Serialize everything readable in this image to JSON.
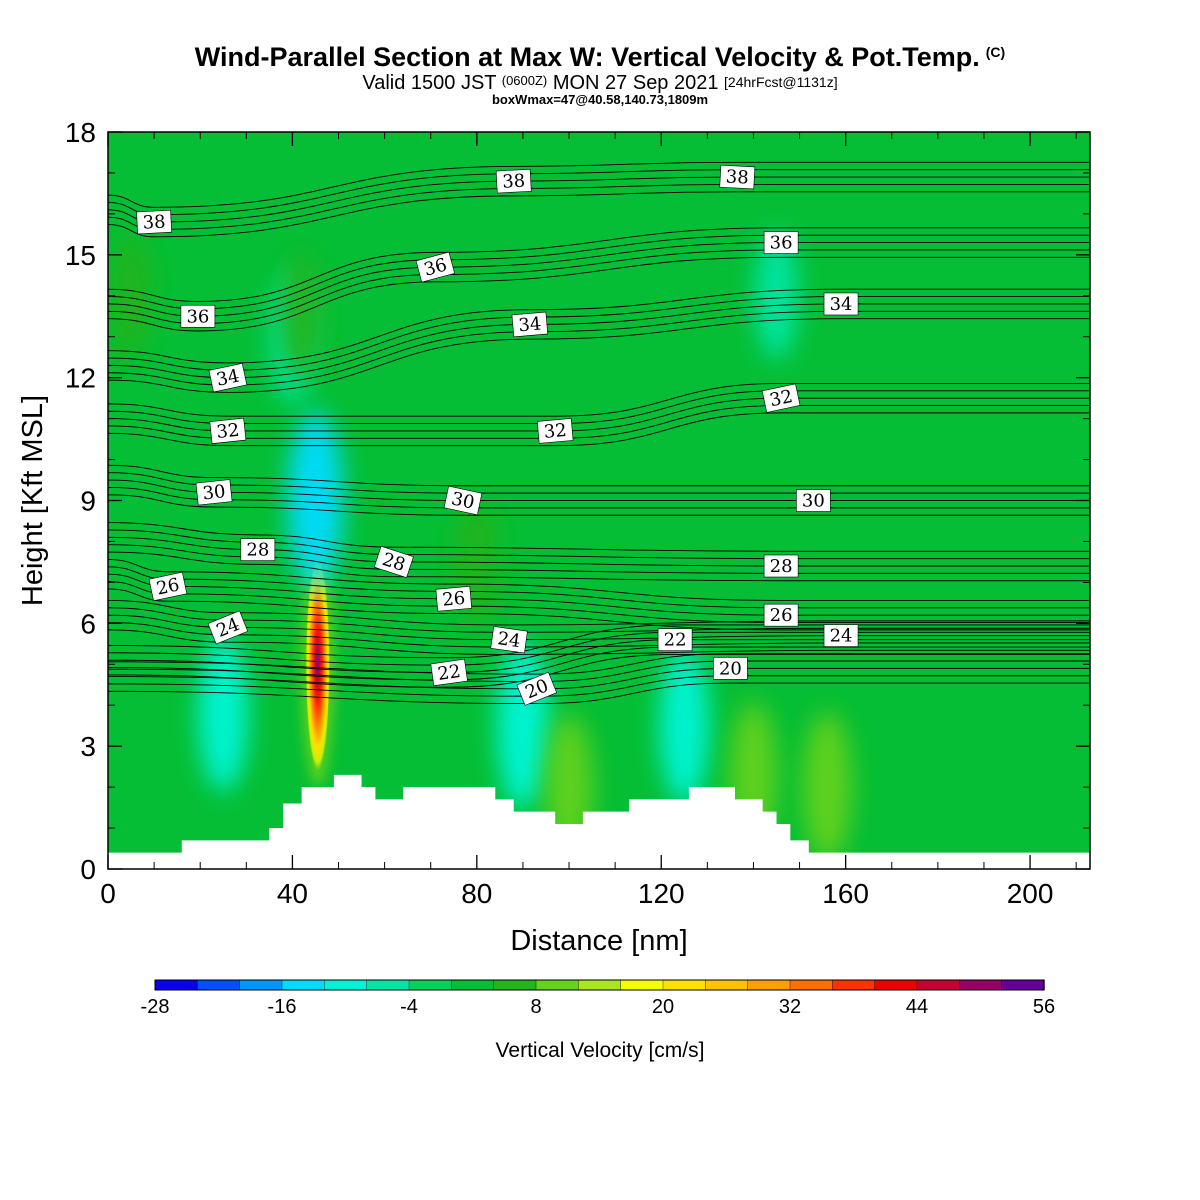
{
  "header": {
    "title": "Wind-Parallel Section at Max W: Vertical Velocity & Pot.Temp.",
    "copyright_mark": "(C)",
    "subtitle_valid": "Valid 1500 JST",
    "subtitle_utc": "(0600Z)",
    "subtitle_date": "MON 27 Sep 2021",
    "subtitle_fcst": "[24hrFcst@1131z]",
    "box_line": "boxWmax=47@40.58,140.73,1809m"
  },
  "chart_data": {
    "type": "heatmap",
    "title": "Wind-Parallel Section at Max W: Vertical Velocity & Pot.Temp.",
    "xlabel": "Distance [nm]",
    "ylabel": "Height [Kft MSL]",
    "xlim": [
      0,
      213
    ],
    "ylim": [
      0,
      18
    ],
    "x_ticks": [
      0,
      40,
      80,
      120,
      160,
      200
    ],
    "y_ticks": [
      0,
      3,
      6,
      9,
      12,
      15,
      18
    ],
    "grid": false,
    "colorbar": {
      "label": "Vertical Velocity [cm/s]",
      "tick_labels": [
        "-28",
        "-16",
        "-4",
        "8",
        "20",
        "32",
        "44",
        "56"
      ],
      "tick_values": [
        -28,
        -16,
        -4,
        8,
        20,
        32,
        44,
        56
      ],
      "bins": [
        -28,
        -24,
        -20,
        -16,
        -12,
        -8,
        -4,
        0,
        4,
        8,
        12,
        16,
        20,
        24,
        28,
        32,
        36,
        40,
        44,
        48,
        52,
        56
      ],
      "colors": [
        "#0a00f0",
        "#0050ff",
        "#0096ff",
        "#00dcff",
        "#00f5d7",
        "#00e6a5",
        "#00d25a",
        "#05be35",
        "#23b41e",
        "#64d21e",
        "#aae61e",
        "#f5ff00",
        "#ffe100",
        "#ffc300",
        "#ffa000",
        "#ff6e00",
        "#ff3200",
        "#ee0000",
        "#c80032",
        "#960064",
        "#640096"
      ]
    },
    "background_value_cm_s": 1,
    "terrain_top_kft": [
      [
        0,
        0.4
      ],
      [
        16,
        0.4
      ],
      [
        16,
        0.7
      ],
      [
        35,
        0.7
      ],
      [
        35,
        1.0
      ],
      [
        38,
        1.0
      ],
      [
        38,
        1.6
      ],
      [
        42,
        1.6
      ],
      [
        42,
        2.0
      ],
      [
        49,
        2.0
      ],
      [
        49,
        2.3
      ],
      [
        55,
        2.3
      ],
      [
        55,
        2.0
      ],
      [
        58,
        2.0
      ],
      [
        58,
        1.7
      ],
      [
        64,
        1.7
      ],
      [
        64,
        2.0
      ],
      [
        84,
        2.0
      ],
      [
        84,
        1.7
      ],
      [
        88,
        1.7
      ],
      [
        88,
        1.4
      ],
      [
        97,
        1.4
      ],
      [
        97,
        1.1
      ],
      [
        103,
        1.1
      ],
      [
        103,
        1.4
      ],
      [
        113,
        1.4
      ],
      [
        113,
        1.7
      ],
      [
        126,
        1.7
      ],
      [
        126,
        2.0
      ],
      [
        136,
        2.0
      ],
      [
        136,
        1.7
      ],
      [
        142,
        1.7
      ],
      [
        142,
        1.4
      ],
      [
        145,
        1.4
      ],
      [
        145,
        1.1
      ],
      [
        148,
        1.1
      ],
      [
        148,
        0.7
      ],
      [
        152,
        0.7
      ],
      [
        152,
        0.4
      ],
      [
        213,
        0.4
      ]
    ],
    "w_features": [
      {
        "x": 45.5,
        "y": 5.0,
        "peak_cm_s": 47
      },
      {
        "x": 25,
        "y": 3.8,
        "peak_cm_s": -10
      },
      {
        "x": 45,
        "y": 9.0,
        "peak_cm_s": -14
      },
      {
        "x": 90,
        "y": 3.5,
        "peak_cm_s": -12
      },
      {
        "x": 125,
        "y": 3.5,
        "peak_cm_s": -10
      },
      {
        "x": 145,
        "y": 14.0,
        "peak_cm_s": -5
      },
      {
        "x": 40,
        "y": 13.0,
        "peak_cm_s": -6
      },
      {
        "x": 5,
        "y": 14.0,
        "peak_cm_s": 4
      },
      {
        "x": 42,
        "y": 13.5,
        "peak_cm_s": 5
      },
      {
        "x": 80,
        "y": 7.5,
        "peak_cm_s": 5
      },
      {
        "x": 100,
        "y": 2.0,
        "peak_cm_s": 8
      },
      {
        "x": 156,
        "y": 2.0,
        "peak_cm_s": 9
      },
      {
        "x": 140,
        "y": 2.3,
        "peak_cm_s": 8
      }
    ],
    "theta_contour_labels": [
      {
        "text": "38",
        "x": 10,
        "y": 15.8,
        "rot": -3
      },
      {
        "text": "38",
        "x": 88,
        "y": 16.8,
        "rot": -3
      },
      {
        "text": "38",
        "x": 136.5,
        "y": 16.9,
        "rot": 3
      },
      {
        "text": "36",
        "x": 19.5,
        "y": 13.5,
        "rot": 0
      },
      {
        "text": "36",
        "x": 71,
        "y": 14.7,
        "rot": -15
      },
      {
        "text": "36",
        "x": 146,
        "y": 15.3,
        "rot": 0
      },
      {
        "text": "34",
        "x": 26,
        "y": 12.0,
        "rot": -12
      },
      {
        "text": "34",
        "x": 91.5,
        "y": 13.3,
        "rot": -5
      },
      {
        "text": "34",
        "x": 159,
        "y": 13.8,
        "rot": 0
      },
      {
        "text": "32",
        "x": 26,
        "y": 10.7,
        "rot": -6
      },
      {
        "text": "32",
        "x": 97,
        "y": 10.7,
        "rot": -5
      },
      {
        "text": "32",
        "x": 146,
        "y": 11.5,
        "rot": -12
      },
      {
        "text": "30",
        "x": 23,
        "y": 9.2,
        "rot": -6
      },
      {
        "text": "30",
        "x": 77,
        "y": 9.0,
        "rot": 12
      },
      {
        "text": "30",
        "x": 153,
        "y": 9.0,
        "rot": 0
      },
      {
        "text": "28",
        "x": 32.5,
        "y": 7.8,
        "rot": 0
      },
      {
        "text": "28",
        "x": 62,
        "y": 7.5,
        "rot": 18
      },
      {
        "text": "28",
        "x": 146,
        "y": 7.4,
        "rot": 0
      },
      {
        "text": "26",
        "x": 13,
        "y": 6.9,
        "rot": -12
      },
      {
        "text": "26",
        "x": 75,
        "y": 6.6,
        "rot": -5
      },
      {
        "text": "26",
        "x": 146,
        "y": 6.2,
        "rot": 0
      },
      {
        "text": "24",
        "x": 26,
        "y": 5.9,
        "rot": -22
      },
      {
        "text": "24",
        "x": 87,
        "y": 5.6,
        "rot": 8
      },
      {
        "text": "24",
        "x": 159,
        "y": 5.7,
        "rot": 0
      },
      {
        "text": "22",
        "x": 74,
        "y": 4.8,
        "rot": -8
      },
      {
        "text": "22",
        "x": 123,
        "y": 5.6,
        "rot": 0
      },
      {
        "text": "20",
        "x": 93,
        "y": 4.4,
        "rot": -22
      },
      {
        "text": "20",
        "x": 135,
        "y": 4.9,
        "rot": 0
      }
    ]
  }
}
